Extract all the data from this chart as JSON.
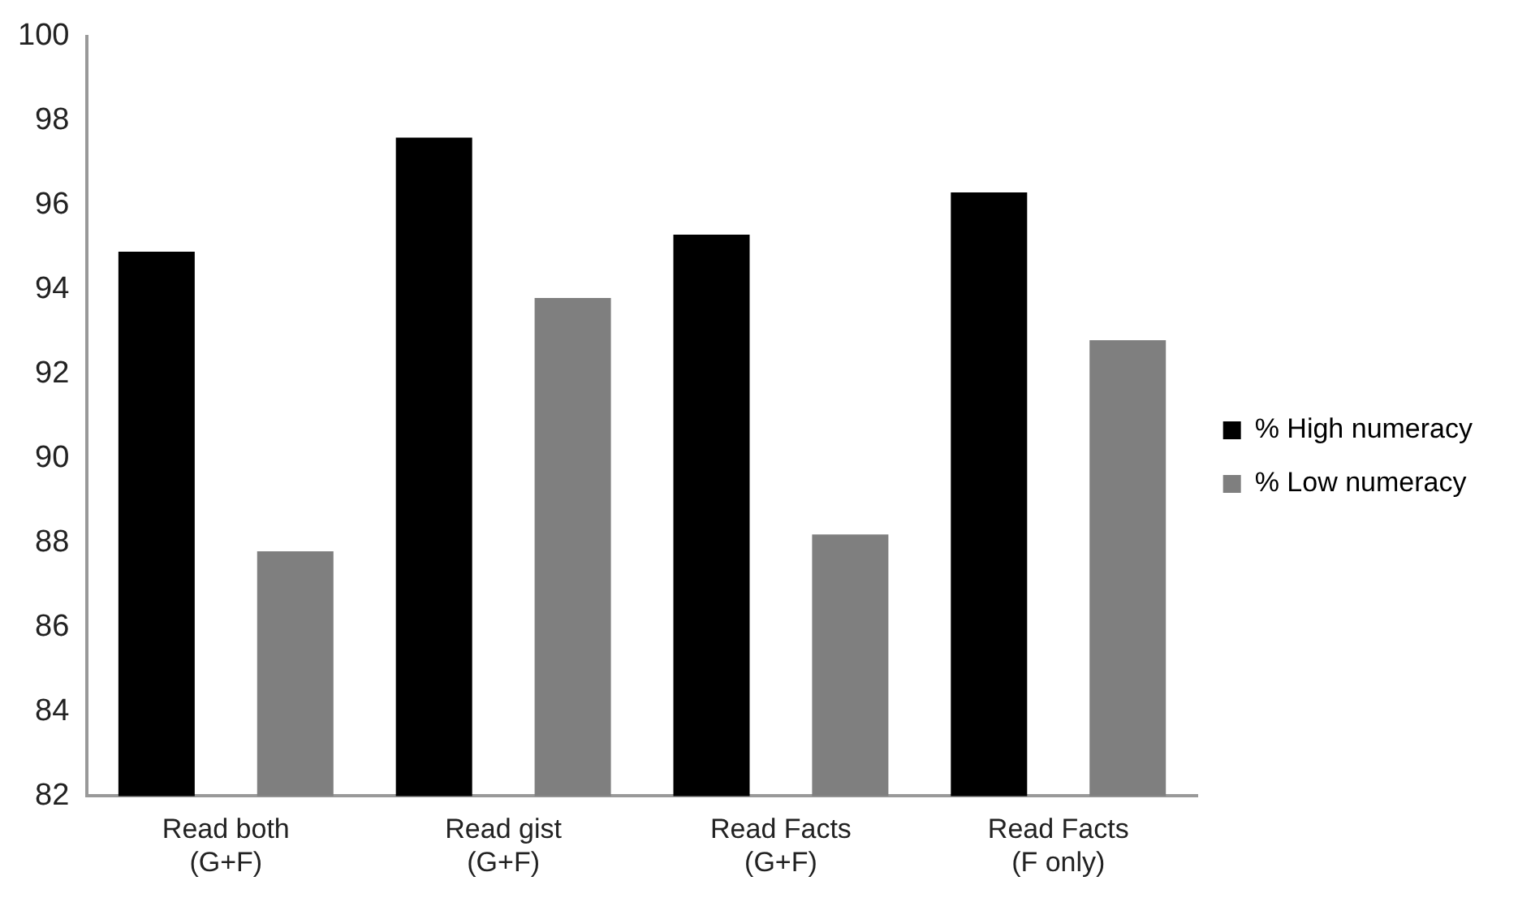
{
  "chart_data": {
    "type": "bar",
    "categories": [
      "Read both (G+F)",
      "Read gist (G+F)",
      "Read Facts (G+F)",
      "Read Facts (F only)"
    ],
    "series": [
      {
        "name": "% High numeracy",
        "color": "#000000",
        "values": [
          94.9,
          97.6,
          95.3,
          96.3
        ]
      },
      {
        "name": "% Low numeracy",
        "color": "#7f7f7f",
        "values": [
          87.8,
          93.8,
          88.2,
          92.8
        ]
      }
    ],
    "ylim": [
      82,
      100
    ],
    "yticks": [
      82,
      84,
      86,
      88,
      90,
      92,
      94,
      96,
      98,
      100
    ],
    "grid": false,
    "legend": "right"
  }
}
